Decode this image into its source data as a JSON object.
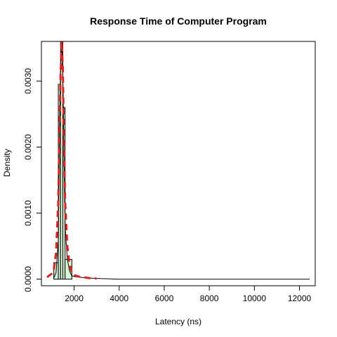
{
  "chart_data": {
    "type": "area",
    "title": "Response Time of Computer Program",
    "xlabel": "Latency (ns)",
    "ylabel": "Density",
    "xlim": [
      550,
      12700
    ],
    "ylim": [
      -0.0001,
      0.0036
    ],
    "x_ticks": [
      2000,
      4000,
      6000,
      8000,
      10000,
      12000
    ],
    "x_tick_labels": [
      "2000",
      "4000",
      "6000",
      "8000",
      "10000",
      "12000"
    ],
    "y_ticks": [
      0,
      0.001,
      0.002,
      0.003
    ],
    "y_tick_labels": [
      "0.0000",
      "0.0010",
      "0.0020",
      "0.0030"
    ],
    "histogram": {
      "fill_color": "#d5f5d5",
      "bins": [
        {
          "x0": 1100,
          "x1": 1300,
          "y": 0.00025
        },
        {
          "x0": 1300,
          "x1": 1400,
          "y": 0.00295
        },
        {
          "x0": 1400,
          "x1": 1500,
          "y": 0.0036
        },
        {
          "x0": 1500,
          "x1": 1600,
          "y": 0.0026
        },
        {
          "x0": 1600,
          "x1": 1900,
          "y": 0.0003
        }
      ]
    },
    "series": [
      {
        "line": "thin-black",
        "color": "#000000",
        "x": [
          1100,
          1200,
          1300,
          1350,
          1400,
          1450,
          1500,
          1550,
          1600,
          1700,
          1800,
          1900,
          2000,
          2200,
          2500,
          3000,
          4000,
          6000,
          8000,
          10000,
          12000,
          12450
        ],
        "y": [
          2e-05,
          0.0001,
          0.0006,
          0.0022,
          0.0032,
          0.0036,
          0.0031,
          0.0019,
          0.0008,
          0.0003,
          0.00012,
          5e-05,
          4e-05,
          3e-05,
          2e-05,
          1e-05,
          0,
          0,
          0,
          0,
          0,
          0
        ]
      },
      {
        "line": "dashed-red",
        "color": "#dd2222",
        "x": [
          800,
          1000,
          1100,
          1200,
          1300,
          1350,
          1400,
          1450,
          1500,
          1550,
          1600,
          1700,
          1800,
          1900,
          2000,
          2200,
          2400,
          2600,
          2800,
          3000
        ],
        "y": [
          3e-05,
          8e-05,
          0.00015,
          0.0004,
          0.0012,
          0.0022,
          0.0031,
          0.0036,
          0.0032,
          0.0021,
          0.0012,
          0.0005,
          0.00022,
          0.0001,
          6e-05,
          4e-05,
          3e-05,
          2e-05,
          1e-05,
          1e-05
        ]
      }
    ],
    "grid": false,
    "legend": "none"
  }
}
